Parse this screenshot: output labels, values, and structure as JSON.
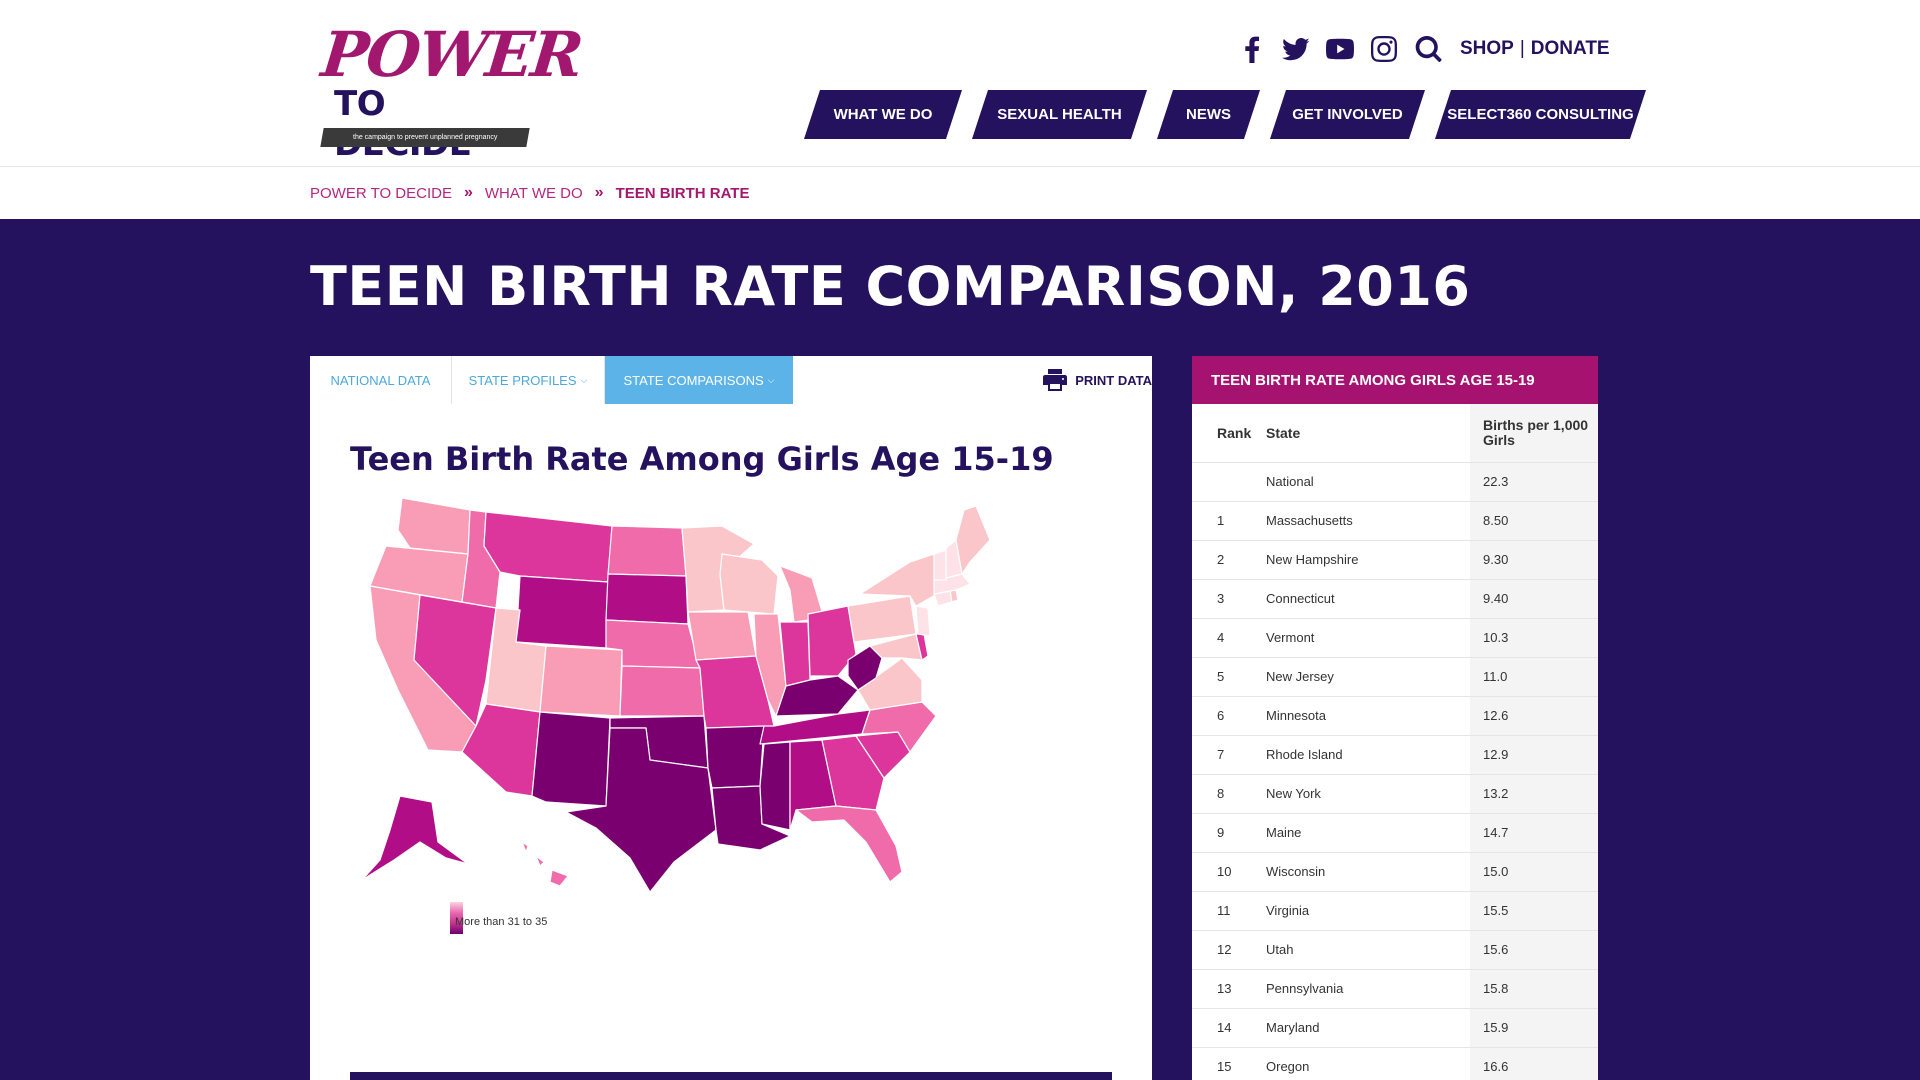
{
  "logo": {
    "power": "POWER",
    "decide": "TO DECIDE",
    "tagline": "the campaign to prevent unplanned pregnancy"
  },
  "social": [
    {
      "icon": "facebook-icon"
    },
    {
      "icon": "twitter-icon"
    },
    {
      "icon": "youtube-icon"
    },
    {
      "icon": "instagram-icon"
    },
    {
      "icon": "search-icon"
    }
  ],
  "header": {
    "shop": "SHOP",
    "separator": "|",
    "donate": "DONATE"
  },
  "nav": [
    "WHAT WE DO",
    "SEXUAL HEALTH",
    "NEWS",
    "GET INVOLVED",
    "SELECT360 CONSULTING"
  ],
  "breadcrumb": {
    "items": [
      "POWER TO DECIDE",
      "WHAT WE DO",
      "TEEN BIRTH RATE"
    ],
    "separator": "»"
  },
  "page": {
    "title": "TEEN BIRTH RATE COMPARISON, 2016"
  },
  "tabs": {
    "national": "NATIONAL DATA",
    "profiles": "STATE PROFILES",
    "comparisons": "STATE COMPARISONS",
    "print": "PRINT DATA"
  },
  "map": {
    "title": "Teen Birth Rate Among Girls Age 15-19",
    "legend_text": "More than 31 to 35"
  },
  "rank_table": {
    "title": "TEEN BIRTH RATE AMONG GIRLS AGE 15-19",
    "col_rank": "Rank",
    "col_state": "State",
    "col_value": "Births per 1,000 Girls",
    "rows": [
      {
        "rank": "",
        "state": "National",
        "value": "22.3"
      },
      {
        "rank": "1",
        "state": "Massachusetts",
        "value": "8.50"
      },
      {
        "rank": "2",
        "state": "New Hampshire",
        "value": "9.30"
      },
      {
        "rank": "3",
        "state": "Connecticut",
        "value": "9.40"
      },
      {
        "rank": "4",
        "state": "Vermont",
        "value": "10.3"
      },
      {
        "rank": "5",
        "state": "New Jersey",
        "value": "11.0"
      },
      {
        "rank": "6",
        "state": "Minnesota",
        "value": "12.6"
      },
      {
        "rank": "7",
        "state": "Rhode Island",
        "value": "12.9"
      },
      {
        "rank": "8",
        "state": "New York",
        "value": "13.2"
      },
      {
        "rank": "9",
        "state": "Maine",
        "value": "14.7"
      },
      {
        "rank": "10",
        "state": "Wisconsin",
        "value": "15.0"
      },
      {
        "rank": "11",
        "state": "Virginia",
        "value": "15.5"
      },
      {
        "rank": "12",
        "state": "Utah",
        "value": "15.6"
      },
      {
        "rank": "13",
        "state": "Pennsylvania",
        "value": "15.8"
      },
      {
        "rank": "14",
        "state": "Maryland",
        "value": "15.9"
      },
      {
        "rank": "15",
        "state": "Oregon",
        "value": "16.6"
      }
    ]
  },
  "colors": {
    "brand_purple": "#25125e",
    "brand_magenta": "#a5126f",
    "tab_blue": "#5cb3e8",
    "link_blue": "#4ea8db",
    "c1": "#fde3e8",
    "c2": "#fbc6c9",
    "c3": "#f99cb6",
    "c4": "#f06ba9",
    "c5": "#dc359b",
    "c6": "#b10d87",
    "c7": "#7a006f"
  }
}
